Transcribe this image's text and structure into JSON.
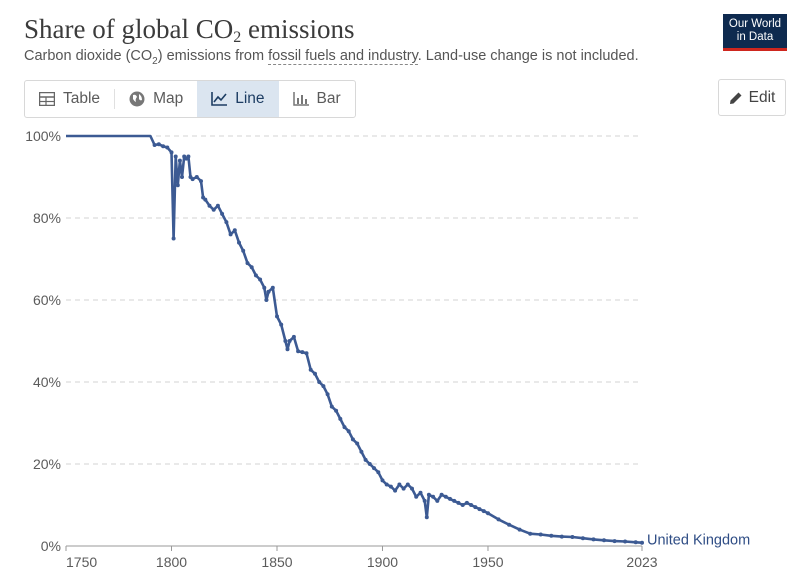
{
  "header": {
    "title_main": "Share of global CO",
    "title_sub": "2",
    "title_end": " emissions",
    "subtitle_a": "Carbon dioxide (CO",
    "subtitle_sub": "2",
    "subtitle_b": ") emissions from ",
    "subtitle_link": "fossil fuels and industry",
    "subtitle_c": ". Land-use change is not included.",
    "logo_line1": "Our World",
    "logo_line2": "in Data"
  },
  "tabs": [
    {
      "label": "Table",
      "icon": "table-icon"
    },
    {
      "label": "Map",
      "icon": "globe-icon"
    },
    {
      "label": "Line",
      "icon": "line-chart-icon",
      "active": true
    },
    {
      "label": "Bar",
      "icon": "bar-chart-icon"
    }
  ],
  "edit_label": "Edit",
  "colors": {
    "line": "#3c5a93",
    "grid": "#d3d3d3",
    "label": "#2f4d85"
  },
  "chart_data": {
    "type": "line",
    "title": "Share of global CO2 emissions",
    "xlabel": "",
    "ylabel": "",
    "xlim": [
      1750,
      2023
    ],
    "ylim": [
      0,
      100
    ],
    "x_ticks": [
      1750,
      1800,
      1850,
      1900,
      1950,
      2023
    ],
    "y_ticks": [
      {
        "value": 0,
        "label": "0%"
      },
      {
        "value": 20,
        "label": "20%"
      },
      {
        "value": 40,
        "label": "40%"
      },
      {
        "value": 60,
        "label": "60%"
      },
      {
        "value": 80,
        "label": "80%"
      },
      {
        "value": 100,
        "label": "100%"
      }
    ],
    "grid": true,
    "series": [
      {
        "name": "United Kingdom",
        "x": [
          1750,
          1760,
          1770,
          1780,
          1790,
          1792,
          1794,
          1796,
          1798,
          1800,
          1801,
          1802,
          1803,
          1804,
          1805,
          1806,
          1807,
          1808,
          1809,
          1810,
          1812,
          1814,
          1815,
          1816,
          1818,
          1820,
          1822,
          1824,
          1826,
          1828,
          1830,
          1832,
          1834,
          1836,
          1838,
          1840,
          1842,
          1844,
          1845,
          1846,
          1848,
          1850,
          1852,
          1854,
          1855,
          1856,
          1858,
          1860,
          1862,
          1864,
          1866,
          1868,
          1870,
          1872,
          1874,
          1876,
          1878,
          1880,
          1882,
          1884,
          1886,
          1888,
          1890,
          1892,
          1894,
          1896,
          1898,
          1900,
          1902,
          1904,
          1906,
          1908,
          1910,
          1912,
          1914,
          1916,
          1918,
          1920,
          1921,
          1922,
          1924,
          1926,
          1928,
          1930,
          1932,
          1934,
          1936,
          1938,
          1940,
          1942,
          1944,
          1946,
          1948,
          1950,
          1955,
          1960,
          1965,
          1970,
          1975,
          1980,
          1985,
          1990,
          1995,
          2000,
          2005,
          2010,
          2015,
          2020,
          2023
        ],
        "y": [
          100,
          100,
          100,
          100,
          100,
          97.8,
          98,
          97.5,
          97.2,
          96,
          75,
          95,
          88,
          94,
          90,
          95,
          94.5,
          95,
          90,
          89.5,
          90,
          89,
          85,
          84.5,
          83,
          82,
          83,
          81,
          79,
          76,
          77,
          74,
          72,
          69,
          68,
          66,
          65,
          63,
          60,
          62,
          63,
          56,
          54,
          50,
          48,
          50,
          51,
          47.5,
          47.3,
          47,
          43,
          42,
          40,
          39,
          37,
          34,
          33,
          31,
          29,
          28,
          26,
          25,
          23,
          21,
          20,
          19,
          18,
          16,
          15,
          14.5,
          13.5,
          15,
          14,
          15,
          14,
          12,
          13,
          11,
          7,
          12.5,
          12,
          11,
          12.5,
          12,
          11.5,
          11,
          10.5,
          10,
          10.5,
          10,
          9.5,
          9,
          8.5,
          8,
          6.5,
          5.2,
          4,
          3,
          2.8,
          2.5,
          2.3,
          2.2,
          1.9,
          1.6,
          1.4,
          1.2,
          1.1,
          0.9,
          0.8
        ]
      }
    ]
  }
}
